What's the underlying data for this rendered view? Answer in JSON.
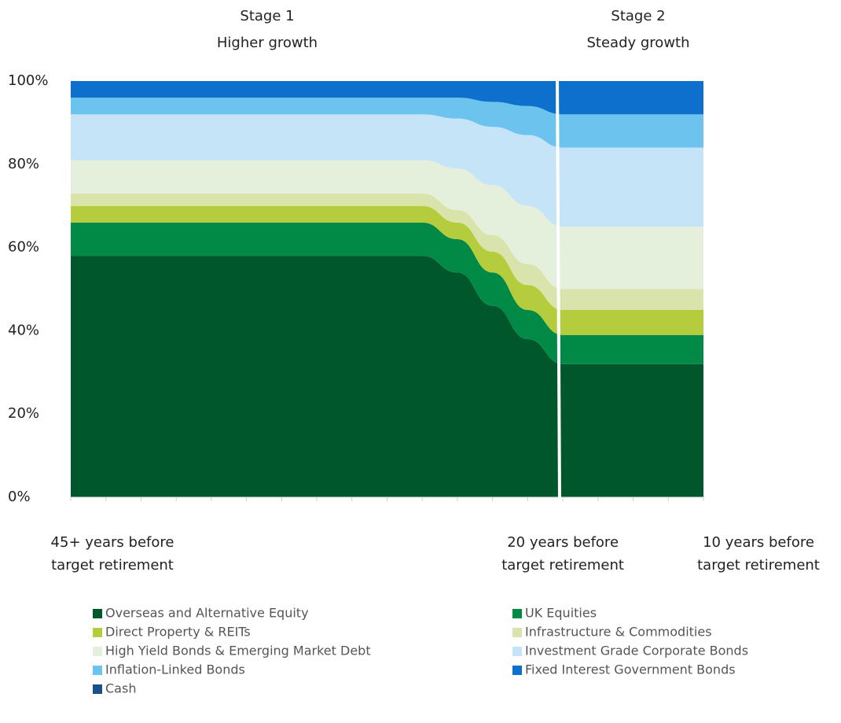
{
  "chart_data": {
    "type": "stacked_area",
    "annotations": [
      [
        "Stage 1",
        "Higher growth"
      ],
      [
        "Stage 2",
        "Steady growth"
      ]
    ],
    "categories": [
      [
        "45+ years before",
        "target retirement"
      ],
      null,
      null,
      null,
      null,
      null,
      null,
      null,
      null,
      null,
      null,
      null,
      null,
      null,
      [
        "20 years before",
        "target retirement"
      ],
      null,
      null,
      null,
      [
        "10 years before",
        "target retirement"
      ]
    ],
    "series": [
      {
        "name": "Overseas and Alternative Equity",
        "color": "#00572c",
        "values": [
          58,
          58,
          58,
          58,
          58,
          58,
          58,
          58,
          58,
          58,
          58,
          54,
          46,
          38,
          32,
          32,
          32,
          32,
          32
        ]
      },
      {
        "name": "UK Equities",
        "color": "#008a45",
        "values": [
          8,
          8,
          8,
          8,
          8,
          8,
          8,
          8,
          8,
          8,
          8,
          8,
          8,
          7,
          7,
          7,
          7,
          7,
          7
        ]
      },
      {
        "name": "Direct Property & REITs",
        "color": "#b5cc3c",
        "values": [
          4,
          4,
          4,
          4,
          4,
          4,
          4,
          4,
          4,
          4,
          4,
          4,
          5,
          6,
          6,
          6,
          6,
          6,
          6
        ]
      },
      {
        "name": "Infrastructure & Commodities",
        "color": "#d8e4ac",
        "values": [
          3,
          3,
          3,
          3,
          3,
          3,
          3,
          3,
          3,
          3,
          3,
          3,
          4,
          5,
          5,
          5,
          5,
          5,
          5
        ]
      },
      {
        "name": "High Yield Bonds & Emerging Market Debt",
        "color": "#e4efdc",
        "values": [
          8,
          8,
          8,
          8,
          8,
          8,
          8,
          8,
          8,
          8,
          8,
          10,
          12,
          14,
          15,
          15,
          15,
          15,
          15
        ]
      },
      {
        "name": "Investment Grade Corporate Bonds",
        "color": "#c6e4f8",
        "values": [
          11,
          11,
          11,
          11,
          11,
          11,
          11,
          11,
          11,
          11,
          11,
          12,
          14,
          17,
          19,
          19,
          19,
          19,
          19
        ]
      },
      {
        "name": "Inflation-Linked Bonds",
        "color": "#6cc4ee",
        "values": [
          4,
          4,
          4,
          4,
          4,
          4,
          4,
          4,
          4,
          4,
          4,
          5,
          6,
          7,
          8,
          8,
          8,
          8,
          8
        ]
      },
      {
        "name": "Fixed Interest Government Bonds",
        "color": "#0d70cc",
        "values": [
          4,
          4,
          4,
          4,
          4,
          4,
          4,
          4,
          4,
          4,
          4,
          4,
          5,
          6,
          8,
          8,
          8,
          8,
          8
        ]
      },
      {
        "name": "Cash",
        "color": "#1a4f8a",
        "values": [
          0,
          0,
          0,
          0,
          0,
          0,
          0,
          0,
          0,
          0,
          0,
          0,
          0,
          0,
          0,
          0,
          0,
          0,
          0
        ]
      }
    ],
    "ylim": [
      0,
      100
    ],
    "yticks": [
      {
        "value": 0,
        "label": "0%"
      },
      {
        "value": 20,
        "label": "20%"
      },
      {
        "value": 40,
        "label": "40%"
      },
      {
        "value": 60,
        "label": "60%"
      },
      {
        "value": 80,
        "label": "80%"
      },
      {
        "value": 100,
        "label": "100%"
      }
    ]
  }
}
